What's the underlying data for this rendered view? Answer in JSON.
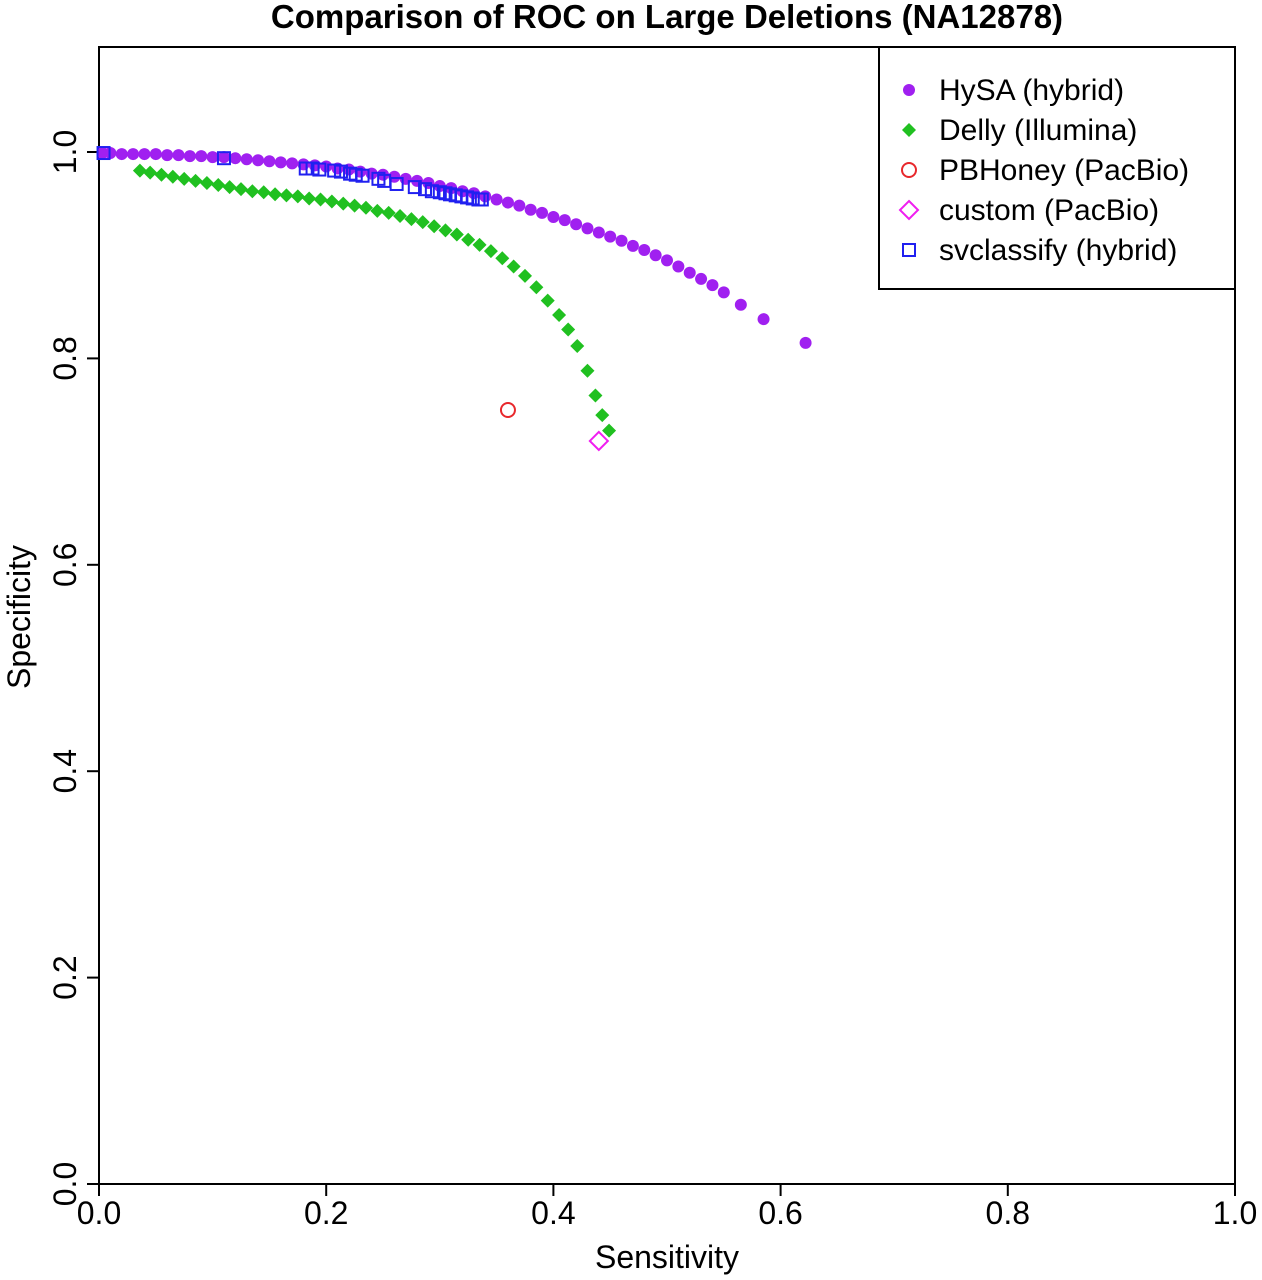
{
  "chart_data": {
    "type": "scatter",
    "title": "Comparison of ROC on Large Deletions (NA12878)",
    "xlabel": "Sensitivity",
    "ylabel": "Specificity",
    "xlim": [
      0,
      1
    ],
    "ylim": [
      0,
      1.1
    ],
    "xticks": [
      "0.0",
      "0.2",
      "0.4",
      "0.6",
      "0.8",
      "1.0"
    ],
    "yticks": [
      "0.0",
      "0.2",
      "0.4",
      "0.6",
      "0.8",
      "1.0"
    ],
    "grid": false,
    "legend_position": "top-right",
    "series": [
      {
        "name": "HySA (hybrid)",
        "marker": "filled-circle",
        "color": "#a020f0",
        "points": [
          [
            0.003,
            0.999
          ],
          [
            0.01,
            0.999
          ],
          [
            0.02,
            0.998
          ],
          [
            0.03,
            0.998
          ],
          [
            0.04,
            0.998
          ],
          [
            0.05,
            0.998
          ],
          [
            0.06,
            0.997
          ],
          [
            0.07,
            0.997
          ],
          [
            0.08,
            0.996
          ],
          [
            0.09,
            0.996
          ],
          [
            0.1,
            0.995
          ],
          [
            0.11,
            0.995
          ],
          [
            0.12,
            0.994
          ],
          [
            0.13,
            0.993
          ],
          [
            0.14,
            0.992
          ],
          [
            0.15,
            0.991
          ],
          [
            0.16,
            0.99
          ],
          [
            0.17,
            0.989
          ],
          [
            0.18,
            0.988
          ],
          [
            0.19,
            0.987
          ],
          [
            0.2,
            0.986
          ],
          [
            0.21,
            0.984
          ],
          [
            0.22,
            0.983
          ],
          [
            0.23,
            0.981
          ],
          [
            0.24,
            0.979
          ],
          [
            0.25,
            0.978
          ],
          [
            0.26,
            0.976
          ],
          [
            0.27,
            0.974
          ],
          [
            0.28,
            0.972
          ],
          [
            0.29,
            0.97
          ],
          [
            0.3,
            0.967
          ],
          [
            0.31,
            0.965
          ],
          [
            0.32,
            0.962
          ],
          [
            0.33,
            0.96
          ],
          [
            0.34,
            0.957
          ],
          [
            0.35,
            0.954
          ],
          [
            0.36,
            0.951
          ],
          [
            0.37,
            0.948
          ],
          [
            0.38,
            0.944
          ],
          [
            0.39,
            0.941
          ],
          [
            0.4,
            0.937
          ],
          [
            0.41,
            0.934
          ],
          [
            0.42,
            0.93
          ],
          [
            0.43,
            0.926
          ],
          [
            0.44,
            0.922
          ],
          [
            0.45,
            0.918
          ],
          [
            0.46,
            0.914
          ],
          [
            0.47,
            0.909
          ],
          [
            0.48,
            0.905
          ],
          [
            0.49,
            0.9
          ],
          [
            0.5,
            0.895
          ],
          [
            0.51,
            0.889
          ],
          [
            0.52,
            0.883
          ],
          [
            0.53,
            0.877
          ],
          [
            0.54,
            0.871
          ],
          [
            0.55,
            0.864
          ],
          [
            0.565,
            0.852
          ],
          [
            0.585,
            0.838
          ],
          [
            0.622,
            0.815
          ]
        ]
      },
      {
        "name": "Delly (Illumina)",
        "marker": "filled-diamond",
        "color": "#20c020",
        "points": [
          [
            0.036,
            0.982
          ],
          [
            0.045,
            0.98
          ],
          [
            0.055,
            0.978
          ],
          [
            0.065,
            0.976
          ],
          [
            0.075,
            0.974
          ],
          [
            0.085,
            0.972
          ],
          [
            0.095,
            0.97
          ],
          [
            0.105,
            0.968
          ],
          [
            0.115,
            0.966
          ],
          [
            0.125,
            0.964
          ],
          [
            0.135,
            0.962
          ],
          [
            0.145,
            0.961
          ],
          [
            0.155,
            0.959
          ],
          [
            0.165,
            0.958
          ],
          [
            0.175,
            0.957
          ],
          [
            0.185,
            0.955
          ],
          [
            0.195,
            0.954
          ],
          [
            0.205,
            0.952
          ],
          [
            0.215,
            0.95
          ],
          [
            0.225,
            0.948
          ],
          [
            0.235,
            0.946
          ],
          [
            0.245,
            0.943
          ],
          [
            0.255,
            0.941
          ],
          [
            0.265,
            0.938
          ],
          [
            0.275,
            0.935
          ],
          [
            0.285,
            0.932
          ],
          [
            0.295,
            0.928
          ],
          [
            0.305,
            0.924
          ],
          [
            0.315,
            0.92
          ],
          [
            0.325,
            0.915
          ],
          [
            0.335,
            0.91
          ],
          [
            0.345,
            0.904
          ],
          [
            0.355,
            0.897
          ],
          [
            0.365,
            0.889
          ],
          [
            0.375,
            0.88
          ],
          [
            0.385,
            0.869
          ],
          [
            0.395,
            0.856
          ],
          [
            0.405,
            0.842
          ],
          [
            0.413,
            0.828
          ],
          [
            0.421,
            0.812
          ],
          [
            0.43,
            0.788
          ],
          [
            0.437,
            0.764
          ],
          [
            0.443,
            0.745
          ],
          [
            0.449,
            0.73
          ]
        ]
      },
      {
        "name": "PBHoney (PacBio)",
        "marker": "open-circle",
        "color": "#e8282c",
        "points": [
          [
            0.36,
            0.75
          ]
        ]
      },
      {
        "name": "custom (PacBio)",
        "marker": "open-diamond",
        "color": "#f01ef0",
        "points": [
          [
            0.44,
            0.72
          ]
        ]
      },
      {
        "name": "svclassify (hybrid)",
        "marker": "open-square",
        "color": "#2020f0",
        "points": [
          [
            0.004,
            0.999
          ],
          [
            0.11,
            0.994
          ],
          [
            0.182,
            0.984
          ],
          [
            0.188,
            0.984
          ],
          [
            0.194,
            0.983
          ],
          [
            0.207,
            0.982
          ],
          [
            0.213,
            0.981
          ],
          [
            0.221,
            0.979
          ],
          [
            0.226,
            0.978
          ],
          [
            0.232,
            0.977
          ],
          [
            0.246,
            0.974
          ],
          [
            0.251,
            0.972
          ],
          [
            0.262,
            0.969
          ],
          [
            0.278,
            0.966
          ],
          [
            0.287,
            0.964
          ],
          [
            0.293,
            0.962
          ],
          [
            0.3,
            0.961
          ],
          [
            0.305,
            0.96
          ],
          [
            0.309,
            0.959
          ],
          [
            0.314,
            0.958
          ],
          [
            0.319,
            0.957
          ],
          [
            0.324,
            0.956
          ],
          [
            0.329,
            0.955
          ],
          [
            0.334,
            0.954
          ],
          [
            0.337,
            0.954
          ]
        ]
      }
    ]
  }
}
